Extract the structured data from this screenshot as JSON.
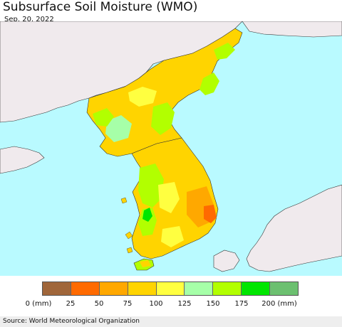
{
  "header": {
    "title": "Subsurface Soil Moisture (WMO)",
    "date": "Sep. 20, 2022"
  },
  "map": {
    "ocean_color": "#b9faff",
    "land_color": "#f0eaed",
    "regions": [
      "North Korea",
      "South Korea",
      "China",
      "Japan",
      "Jeju"
    ]
  },
  "legend": {
    "colors": [
      "#a0663a",
      "#ff6a00",
      "#ffa800",
      "#ffd400",
      "#ffff40",
      "#a6ffa8",
      "#b2ff00",
      "#00e600",
      "#6cc070"
    ],
    "ticks": [
      {
        "label": "0 (mm)"
      },
      {
        "label": "25"
      },
      {
        "label": "50"
      },
      {
        "label": "75"
      },
      {
        "label": "100"
      },
      {
        "label": "125"
      },
      {
        "label": "150"
      },
      {
        "label": "175"
      },
      {
        "label": "200 (mm)"
      }
    ]
  },
  "footer": {
    "source": "Source: World Meteorological Organization"
  }
}
